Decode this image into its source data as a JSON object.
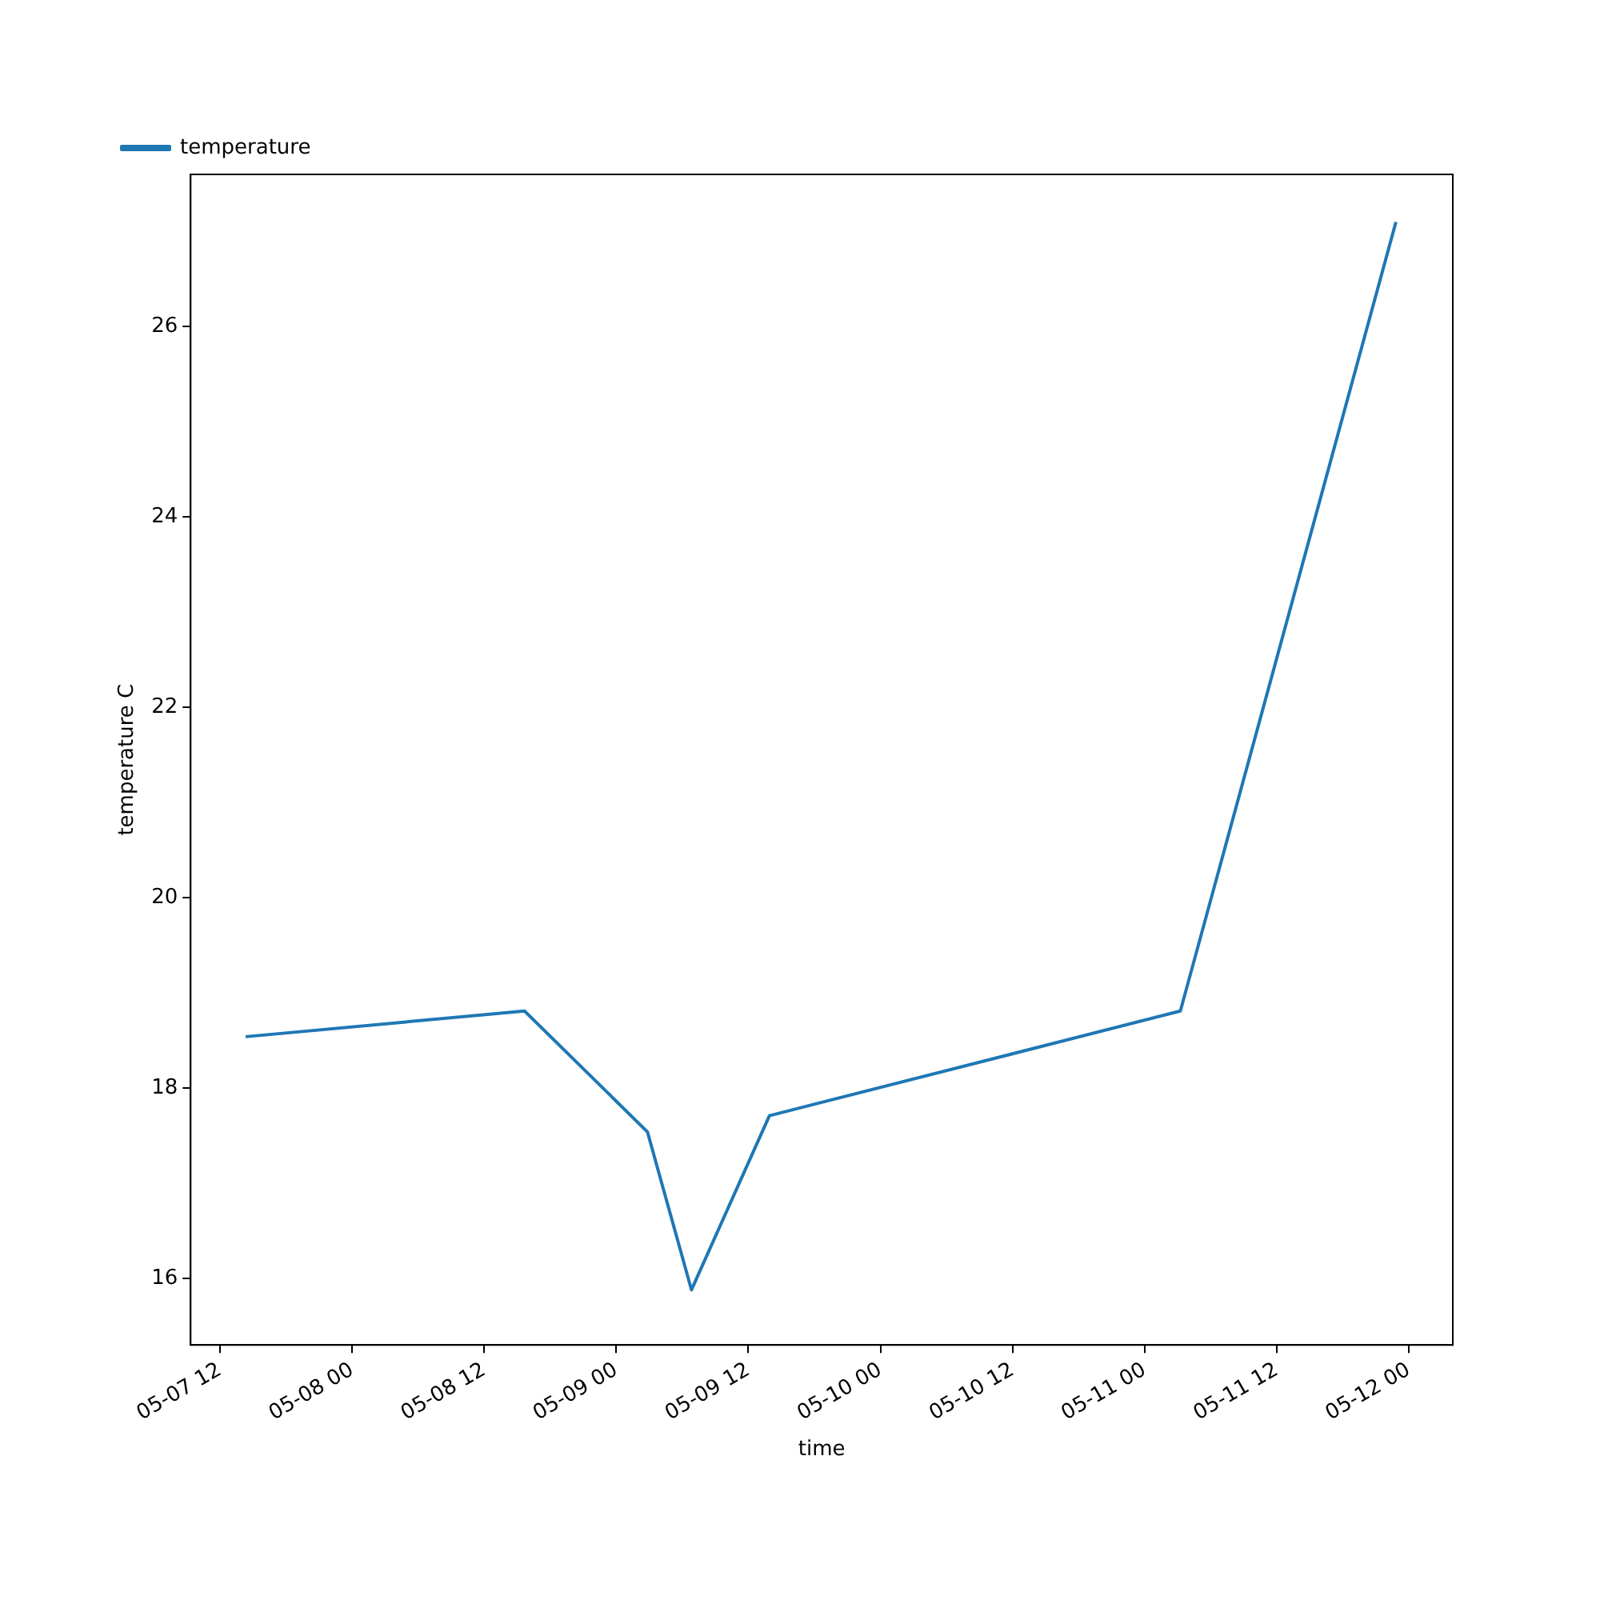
{
  "chart_data": {
    "type": "line",
    "xlabel": "time",
    "ylabel": "temperature C",
    "x": [
      "--05-07T14:20",
      "--05-08T15:40",
      "--05-09T02:50",
      "--05-09T06:50",
      "--05-09T13:55",
      "--05-11T03:15",
      "--05-11T22:50"
    ],
    "series": [
      {
        "name": "temperature",
        "color": "#1f77b4",
        "values": [
          18.54,
          18.81,
          17.54,
          15.88,
          17.71,
          18.81,
          27.1
        ]
      }
    ],
    "xlim": [
      "--05-07T09:20",
      "--05-12T04:00"
    ],
    "xticks": [
      {
        "value": "--05-07T12:00",
        "label": "05-07 12"
      },
      {
        "value": "--05-08T00:00",
        "label": "05-08 00"
      },
      {
        "value": "--05-08T12:00",
        "label": "05-08 12"
      },
      {
        "value": "--05-09T00:00",
        "label": "05-09 00"
      },
      {
        "value": "--05-09T12:00",
        "label": "05-09 12"
      },
      {
        "value": "--05-10T00:00",
        "label": "05-10 00"
      },
      {
        "value": "--05-10T12:00",
        "label": "05-10 12"
      },
      {
        "value": "--05-11T00:00",
        "label": "05-11 00"
      },
      {
        "value": "--05-11T12:00",
        "label": "05-11 12"
      },
      {
        "value": "--05-12T00:00",
        "label": "05-12 00"
      }
    ],
    "ylim": [
      15.3,
      27.6
    ],
    "yticks": [
      16,
      18,
      20,
      22,
      24,
      26
    ],
    "legend": "top left",
    "grid": false,
    "marker": "none",
    "line_style": "solid"
  }
}
